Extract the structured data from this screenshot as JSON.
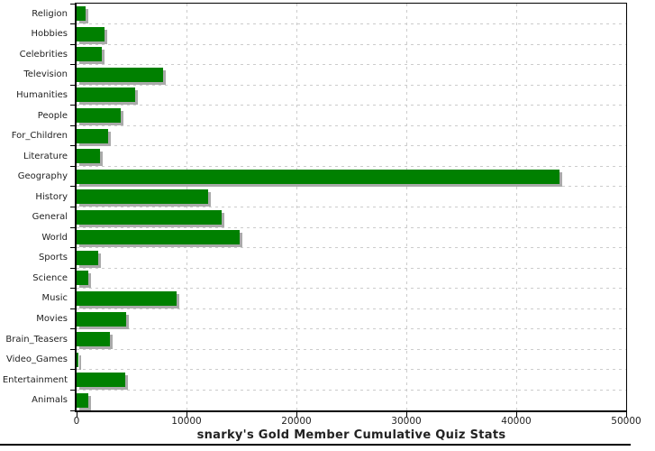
{
  "chart_data": {
    "type": "bar",
    "orientation": "horizontal",
    "title": "snarky's Gold Member Cumulative Quiz Stats",
    "xlabel": "",
    "ylabel": "",
    "xlim": [
      0,
      50000
    ],
    "x_ticks": [
      0,
      10000,
      20000,
      30000,
      40000,
      50000
    ],
    "grid": "dashed, both axes",
    "legend_position": "none",
    "categories": [
      "Religion",
      "Hobbies",
      "Celebrities",
      "Television",
      "Humanities",
      "People",
      "For_Children",
      "Literature",
      "Geography",
      "History",
      "General",
      "World",
      "Sports",
      "Science",
      "Music",
      "Movies",
      "Brain_Teasers",
      "Video_Games",
      "Entertainment",
      "Animals"
    ],
    "values": [
      800,
      2500,
      2300,
      7900,
      5300,
      4000,
      2900,
      2100,
      43900,
      12000,
      13200,
      14800,
      2000,
      1100,
      9100,
      4500,
      3000,
      150,
      4400,
      1100
    ]
  },
  "colors": {
    "bar": "#008000",
    "bar_shadow": "#aaaaaa",
    "grid": "#cccccc",
    "axis": "#000000",
    "label_text": "#222222",
    "title_text": "#222222",
    "background": "#ffffff"
  }
}
